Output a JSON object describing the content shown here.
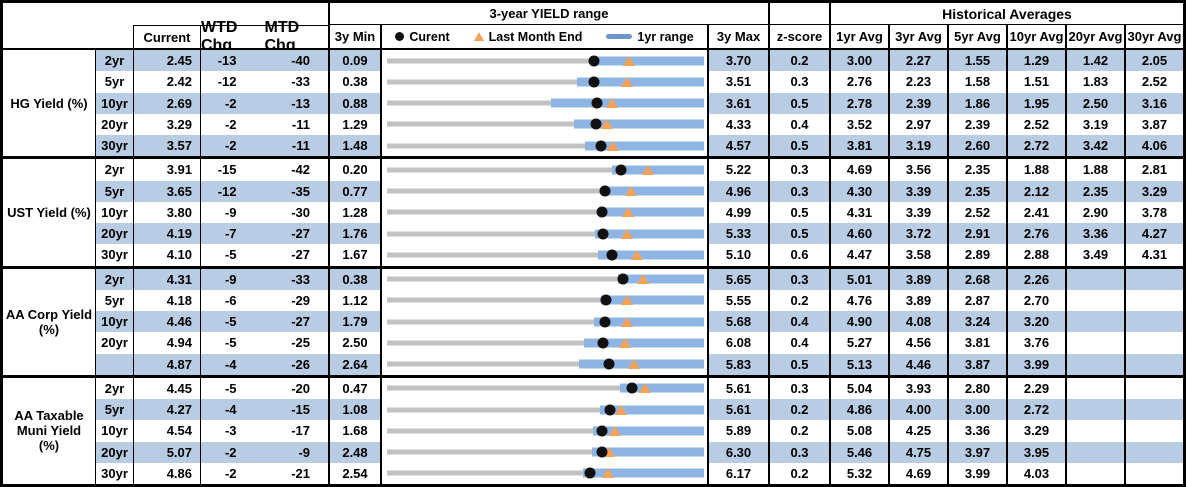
{
  "header": {
    "range_title": "3-year YIELD range",
    "hist_title": "Historical Averages",
    "col_current": "Current",
    "col_wtd": "WTD Chg",
    "col_mtd": "MTD Chg",
    "col_min": "3y Min",
    "col_max": "3y Max",
    "col_z": "z-score",
    "avg_cols": [
      "1yr Avg",
      "3yr Avg",
      "5yr Avg",
      "10yr Avg",
      "20yr Avg",
      "30yr Avg"
    ],
    "legend": {
      "current": "Curent",
      "last_month": "Last Month End",
      "range": "1yr range"
    }
  },
  "colors": {
    "band": "#b8cce4",
    "bar": "#8db4e2",
    "track": "#c2c2c2",
    "tri": "#f5a158",
    "dot": "#111111",
    "legend_bar": "#6e96ca",
    "border": "#000000"
  },
  "chart_data": {
    "type": "table",
    "title": "3-year YIELD range",
    "description": "Yield dashboard: per-tenor current yield, WTD/MTD change (bp), 3y min/max with 1yr range bar, current dot, last-month-end triangle, z-score and historical averages",
    "groups": [
      {
        "label": "HG Yield (%)",
        "label_lines": [
          "HG Yield (%)"
        ],
        "rows": [
          {
            "tenor": "2yr",
            "current": 2.45,
            "wtd": -13,
            "mtd": -40,
            "min": 0.09,
            "max": 3.7,
            "last_month_end": 2.85,
            "bar_lo": 2.43,
            "bar_hi": 3.7,
            "z": 0.2,
            "avgs": [
              3.0,
              2.27,
              1.55,
              1.29,
              1.42,
              2.05
            ]
          },
          {
            "tenor": "5yr",
            "current": 2.42,
            "wtd": -12,
            "mtd": -33,
            "min": 0.38,
            "max": 3.51,
            "last_month_end": 2.75,
            "bar_lo": 2.26,
            "bar_hi": 3.51,
            "z": 0.3,
            "avgs": [
              2.76,
              2.23,
              1.58,
              1.51,
              1.83,
              2.52
            ]
          },
          {
            "tenor": "10yr",
            "current": 2.69,
            "wtd": -2,
            "mtd": -13,
            "min": 0.88,
            "max": 3.61,
            "last_month_end": 2.82,
            "bar_lo": 2.29,
            "bar_hi": 3.61,
            "z": 0.5,
            "avgs": [
              2.78,
              2.39,
              1.86,
              1.95,
              2.5,
              3.16
            ]
          },
          {
            "tenor": "20yr",
            "current": 3.29,
            "wtd": -2,
            "mtd": -11,
            "min": 1.29,
            "max": 4.33,
            "last_month_end": 3.4,
            "bar_lo": 3.08,
            "bar_hi": 4.33,
            "z": 0.4,
            "avgs": [
              3.52,
              2.97,
              2.39,
              2.52,
              3.19,
              3.87
            ]
          },
          {
            "tenor": "30yr",
            "current": 3.57,
            "wtd": -2,
            "mtd": -11,
            "min": 1.48,
            "max": 4.57,
            "last_month_end": 3.68,
            "bar_lo": 3.41,
            "bar_hi": 4.57,
            "z": 0.5,
            "avgs": [
              3.81,
              3.19,
              2.6,
              2.72,
              3.42,
              4.06
            ]
          }
        ]
      },
      {
        "label": "UST Yield (%)",
        "label_lines": [
          "UST Yield (%)"
        ],
        "rows": [
          {
            "tenor": "2yr",
            "current": 3.91,
            "wtd": -15,
            "mtd": -42,
            "min": 0.2,
            "max": 5.22,
            "last_month_end": 4.33,
            "bar_lo": 3.76,
            "bar_hi": 5.22,
            "z": 0.3,
            "avgs": [
              4.69,
              3.56,
              2.35,
              1.88,
              1.88,
              2.81
            ]
          },
          {
            "tenor": "5yr",
            "current": 3.65,
            "wtd": -12,
            "mtd": -35,
            "min": 0.77,
            "max": 4.96,
            "last_month_end": 4.0,
            "bar_lo": 3.6,
            "bar_hi": 4.96,
            "z": 0.3,
            "avgs": [
              4.3,
              3.39,
              2.35,
              2.12,
              2.35,
              3.29
            ]
          },
          {
            "tenor": "10yr",
            "current": 3.8,
            "wtd": -9,
            "mtd": -30,
            "min": 1.28,
            "max": 4.99,
            "last_month_end": 4.1,
            "bar_lo": 3.77,
            "bar_hi": 4.99,
            "z": 0.5,
            "avgs": [
              4.31,
              3.39,
              2.52,
              2.41,
              2.9,
              3.78
            ]
          },
          {
            "tenor": "20yr",
            "current": 4.19,
            "wtd": -7,
            "mtd": -27,
            "min": 1.76,
            "max": 5.33,
            "last_month_end": 4.46,
            "bar_lo": 4.1,
            "bar_hi": 5.33,
            "z": 0.5,
            "avgs": [
              4.6,
              3.72,
              2.91,
              2.76,
              3.36,
              4.27
            ]
          },
          {
            "tenor": "30yr",
            "current": 4.1,
            "wtd": -5,
            "mtd": -27,
            "min": 1.67,
            "max": 5.1,
            "last_month_end": 4.37,
            "bar_lo": 3.95,
            "bar_hi": 5.1,
            "z": 0.6,
            "avgs": [
              4.47,
              3.58,
              2.89,
              2.88,
              3.49,
              4.31
            ]
          }
        ]
      },
      {
        "label": "AA Corp Yield (%)",
        "label_lines": [
          "AA Corp Yield",
          "(%)"
        ],
        "rows": [
          {
            "tenor": "2yr",
            "current": 4.31,
            "wtd": -9,
            "mtd": -33,
            "min": 0.38,
            "max": 5.65,
            "last_month_end": 4.64,
            "bar_lo": 4.22,
            "bar_hi": 5.65,
            "z": 0.3,
            "avgs": [
              5.01,
              3.89,
              2.68,
              2.26,
              null,
              null
            ]
          },
          {
            "tenor": "5yr",
            "current": 4.18,
            "wtd": -6,
            "mtd": -29,
            "min": 1.12,
            "max": 5.55,
            "last_month_end": 4.47,
            "bar_lo": 4.11,
            "bar_hi": 5.55,
            "z": 0.2,
            "avgs": [
              4.76,
              3.89,
              2.87,
              2.7,
              null,
              null
            ]
          },
          {
            "tenor": "10yr",
            "current": 4.46,
            "wtd": -5,
            "mtd": -27,
            "min": 1.79,
            "max": 5.68,
            "last_month_end": 4.73,
            "bar_lo": 4.33,
            "bar_hi": 5.68,
            "z": 0.4,
            "avgs": [
              4.9,
              4.08,
              3.24,
              3.2,
              null,
              null
            ]
          },
          {
            "tenor": "20yr",
            "current": 4.94,
            "wtd": -5,
            "mtd": -25,
            "min": 2.5,
            "max": 6.08,
            "last_month_end": 5.19,
            "bar_lo": 4.72,
            "bar_hi": 6.08,
            "z": 0.4,
            "avgs": [
              5.27,
              4.56,
              3.81,
              3.76,
              null,
              null
            ]
          },
          {
            "tenor": "",
            "current": 4.87,
            "wtd": -4,
            "mtd": -26,
            "min": 2.64,
            "max": 5.83,
            "last_month_end": 5.13,
            "bar_lo": 4.57,
            "bar_hi": 5.83,
            "z": 0.5,
            "avgs": [
              5.13,
              4.46,
              3.87,
              3.99,
              null,
              null
            ]
          }
        ]
      },
      {
        "label": "AA Taxable Muni Yield (%)",
        "label_lines": [
          "AA Taxable",
          "Muni Yield",
          "(%)"
        ],
        "rows": [
          {
            "tenor": "2yr",
            "current": 4.45,
            "wtd": -5,
            "mtd": -20,
            "min": 0.47,
            "max": 5.61,
            "last_month_end": 4.65,
            "bar_lo": 4.25,
            "bar_hi": 5.61,
            "z": 0.3,
            "avgs": [
              5.04,
              3.93,
              2.8,
              2.29,
              null,
              null
            ]
          },
          {
            "tenor": "5yr",
            "current": 4.27,
            "wtd": -4,
            "mtd": -15,
            "min": 1.08,
            "max": 5.61,
            "last_month_end": 4.42,
            "bar_lo": 4.12,
            "bar_hi": 5.61,
            "z": 0.2,
            "avgs": [
              4.86,
              4.0,
              3.0,
              2.72,
              null,
              null
            ]
          },
          {
            "tenor": "10yr",
            "current": 4.54,
            "wtd": -3,
            "mtd": -17,
            "min": 1.68,
            "max": 5.89,
            "last_month_end": 4.71,
            "bar_lo": 4.42,
            "bar_hi": 5.89,
            "z": 0.2,
            "avgs": [
              5.08,
              4.25,
              3.36,
              3.29,
              null,
              null
            ]
          },
          {
            "tenor": "20yr",
            "current": 5.07,
            "wtd": -2,
            "mtd": -9,
            "min": 2.48,
            "max": 6.3,
            "last_month_end": 5.16,
            "bar_lo": 4.95,
            "bar_hi": 6.3,
            "z": 0.3,
            "avgs": [
              5.46,
              4.75,
              3.97,
              3.95,
              null,
              null
            ]
          },
          {
            "tenor": "30yr",
            "current": 4.86,
            "wtd": -2,
            "mtd": -21,
            "min": 2.54,
            "max": 6.17,
            "last_month_end": 5.07,
            "bar_lo": 4.79,
            "bar_hi": 6.17,
            "z": 0.2,
            "avgs": [
              5.32,
              4.69,
              3.99,
              4.03,
              null,
              null
            ]
          }
        ]
      }
    ]
  }
}
